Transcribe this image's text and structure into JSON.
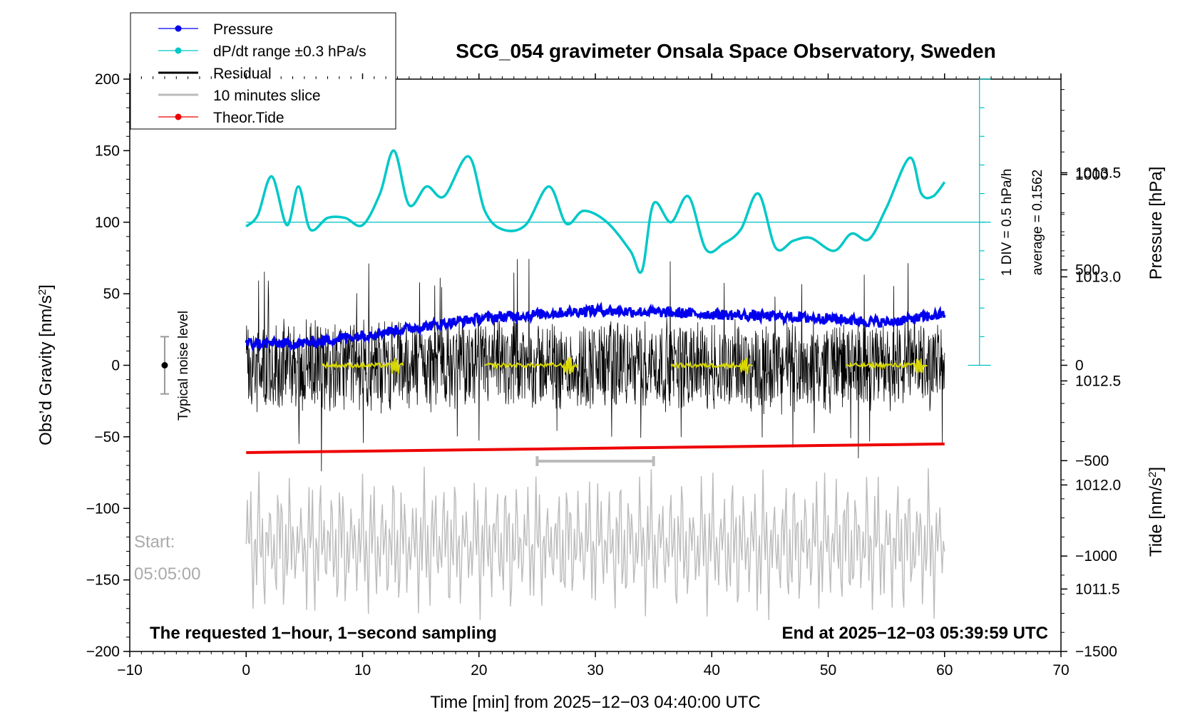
{
  "chart_data": {
    "type": "line",
    "title": "SCG_054 gravimeter Onsala Space Observatory, Sweden",
    "xlabel": "Time [min] from 2025−12−03 04:40:00 UTC",
    "ylabel_left_main": "Obs’d Gravity [nm/s",
    "ylabel_left_sup": "2",
    "ylabel_left_end": "]",
    "ylabel_right_top": "Pressure [hPa]",
    "ylabel_right_bottom_main": "Tide [nm/s",
    "ylabel_right_bottom_sup": "2",
    "ylabel_right_bottom_end": "]",
    "xlim": [
      -10,
      70
    ],
    "ylim": [
      -200,
      200
    ],
    "x_ticks": [
      "−10",
      "0",
      "10",
      "20",
      "30",
      "40",
      "50",
      "60",
      "70"
    ],
    "y_ticks": [
      "−200",
      "−150",
      "−100",
      "−50",
      "0",
      "50",
      "100",
      "150",
      "200"
    ],
    "pressure_axis": {
      "range": [
        1011.2,
        1013.95
      ],
      "ticks": [
        "1011.5",
        "1012.0",
        "1012.5",
        "1013.0",
        "1013.5"
      ]
    },
    "tide_axis": {
      "range": [
        -1500,
        1500
      ],
      "ticks": [
        "−1500",
        "−1000",
        "−500",
        "0",
        "500",
        "1000"
      ]
    },
    "legend": {
      "position": "top-left",
      "items": [
        {
          "label": "Pressure",
          "color": "#0000ee",
          "marker": true
        },
        {
          "label": "dP/dt range ±0.3 hPa/s",
          "color": "#00c8c8",
          "marker": true
        },
        {
          "label": "Residual",
          "color": "#000000",
          "marker": false
        },
        {
          "label": "10 minutes slice",
          "color": "#bbbbbb",
          "marker": false
        },
        {
          "label": "Theor.Tide",
          "color": "#ee0000",
          "marker": true
        }
      ]
    },
    "series": [
      {
        "name": "Pressure",
        "color": "#0000ee",
        "axis": "pressure",
        "x": [
          0,
          5,
          10,
          15,
          20,
          25,
          30,
          35,
          40,
          45,
          50,
          55,
          60
        ],
        "y": [
          1012.68,
          1012.68,
          1012.72,
          1012.76,
          1012.8,
          1012.82,
          1012.84,
          1012.83,
          1012.82,
          1012.81,
          1012.8,
          1012.78,
          1012.82
        ]
      },
      {
        "name": "dP/dt range ±0.3 hPa/s",
        "color": "#00c8c8",
        "axis": "gravity",
        "x": [
          0,
          1,
          2.2,
          3.5,
          4.5,
          5.5,
          7,
          8.5,
          10,
          11.5,
          12.7,
          14,
          15.5,
          17,
          19.1,
          20.5,
          22,
          24,
          26,
          27.5,
          29,
          31,
          33,
          34,
          35,
          36.5,
          38,
          39.5,
          41,
          42.5,
          44,
          45.5,
          47,
          48.5,
          50.5,
          52,
          53.5,
          55,
          57,
          58,
          59,
          60
        ],
        "y": [
          97,
          105,
          132,
          98,
          125,
          95,
          103,
          103,
          98,
          120,
          150,
          112,
          125,
          118,
          146,
          108,
          95,
          98,
          125,
          99,
          108,
          100,
          80,
          66,
          113,
          100,
          118,
          81,
          85,
          95,
          120,
          82,
          87,
          89,
          80,
          92,
          88,
          110,
          145,
          120,
          118,
          128
        ]
      },
      {
        "name": "Residual",
        "color": "#000000",
        "axis": "gravity",
        "x_range": [
          0,
          60
        ],
        "baseline": 0,
        "amplitude_nm_s2": 35,
        "max_spike": 80,
        "min_spike": -80
      },
      {
        "name": "10 minutes slice",
        "color": "#bbbbbb",
        "axis": "gravity",
        "x_range": [
          0,
          60
        ],
        "baseline": -125,
        "amplitude_nm_s2": 55
      },
      {
        "name": "Theor.Tide",
        "color": "#ee0000",
        "axis": "gravity",
        "x": [
          0,
          60
        ],
        "y": [
          -61,
          -55
        ]
      },
      {
        "name": "Yellow smoothed segments",
        "color": "#d8d800",
        "axis": "gravity",
        "segments": [
          [
            6.5,
            13.5
          ],
          [
            20.5,
            28.5
          ],
          [
            36.5,
            43.5
          ],
          [
            51.5,
            58.5
          ]
        ],
        "y": 0
      }
    ],
    "annotations": {
      "noise_label": "Typical noise level",
      "noise_bar": {
        "x": -7,
        "y_low": -20,
        "y_high": 20
      },
      "slice_bar": {
        "x_start": 25,
        "x_end": 35,
        "y": -67
      },
      "start_label": "Start:",
      "start_time": "05:05:00",
      "bottom_left": "The requested 1−hour, 1−second sampling",
      "bottom_right": "End at 2025−12−03 05:39:59 UTC",
      "scale_div": "1 DIV = 0.5 hPa/h",
      "average": "average = 0.1562",
      "dpdt_reference_y": 100
    }
  }
}
